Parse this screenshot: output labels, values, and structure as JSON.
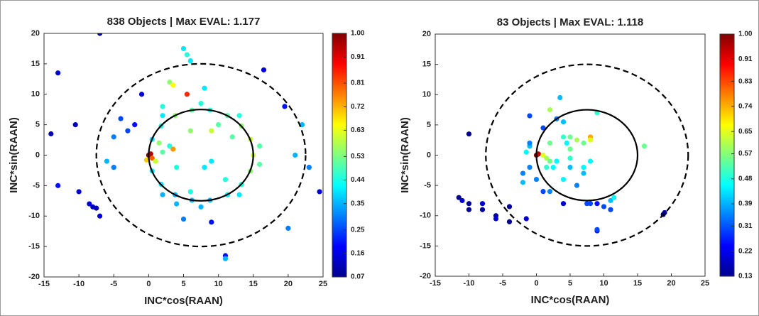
{
  "chart_data": [
    {
      "type": "scatter",
      "title": "838 Objects | Max EVAL: 1.177",
      "x_label": "INC*cos(RAAN)",
      "y_label": "INC*sin(RAAN)",
      "xlim": [
        -15,
        25
      ],
      "ylim": [
        -20,
        20
      ],
      "xticks": [
        -15,
        -10,
        -5,
        0,
        5,
        10,
        15,
        20,
        25
      ],
      "yticks": [
        -20,
        -15,
        -10,
        -5,
        0,
        5,
        10,
        15,
        20
      ],
      "colormap": "jet",
      "clim": [
        0.07,
        1
      ],
      "cticks": [
        0.07,
        0.16,
        0.25,
        0.35,
        0.44,
        0.53,
        0.63,
        0.72,
        0.81,
        0.91,
        {
          "value": 1,
          "label": "1.00"
        }
      ],
      "circles": [
        {
          "cx": 7.5,
          "cy": 0,
          "r": 15,
          "style": "dashed"
        },
        {
          "cx": 7.5,
          "cy": 0,
          "r": 7.5,
          "style": "solid"
        }
      ],
      "x": [
        -7,
        -13,
        -14,
        -10.5,
        -13,
        -10,
        -8.5,
        -8,
        -7.5,
        -7,
        16.5,
        19.5,
        24.5,
        23,
        22,
        20,
        11,
        11,
        9,
        5,
        -5,
        -6,
        -5,
        -3,
        -2,
        -4,
        21,
        5,
        5.5,
        6,
        5.5,
        3,
        3.5,
        8,
        2,
        -1,
        0,
        0.3,
        0.5,
        1,
        -0.3,
        2,
        1.5,
        3.5,
        4,
        6,
        9,
        10,
        12,
        8,
        11,
        6,
        4,
        3,
        9,
        15,
        14.6,
        13.3,
        11.3,
        8.8,
        6.2,
        3.8,
        1.8,
        0.5,
        0.5,
        1.8,
        3.8,
        6.2,
        8.8,
        11.3,
        13.3,
        14.6,
        15.9,
        13,
        7.5,
        2,
        2,
        7.5,
        13,
        15.9
      ],
      "y": [
        20,
        13.5,
        3.5,
        5,
        -5,
        -6,
        -8,
        -8.5,
        -8.7,
        -10,
        14,
        8,
        -6,
        -2,
        5,
        -12,
        -16.5,
        -17,
        -11,
        -10.5,
        -2,
        -1,
        3,
        4,
        5,
        6,
        0,
        17.5,
        16.5,
        15.5,
        10,
        12,
        11.5,
        11,
        8,
        10,
        0,
        0.2,
        -0.5,
        -1,
        -0.8,
        0.5,
        2,
        1,
        -2,
        4,
        4,
        5,
        3,
        -2,
        -4,
        -6,
        -8,
        1.5,
        -1,
        0,
        2.6,
        4.8,
        6.5,
        7.4,
        7.4,
        6.5,
        4.8,
        2.6,
        -2.6,
        -4.8,
        -6.5,
        -7.4,
        -7.4,
        -6.5,
        -4.8,
        -2.6,
        1.5,
        6.5,
        8.5,
        6.5,
        -6.5,
        -8.5,
        -6.5,
        -1.5
      ],
      "c": [
        0.1,
        0.15,
        0.12,
        0.13,
        0.2,
        0.15,
        0.15,
        0.13,
        0.12,
        0.15,
        0.15,
        0.2,
        0.15,
        0.3,
        0.35,
        0.3,
        0.2,
        0.35,
        0.2,
        0.3,
        0.3,
        0.35,
        0.3,
        0.25,
        0.2,
        0.25,
        0.35,
        0.4,
        0.45,
        0.4,
        0.85,
        0.55,
        0.65,
        0.4,
        0.45,
        0.15,
        1,
        0.95,
        0.8,
        0.6,
        0.7,
        0.5,
        0.55,
        0.75,
        0.45,
        0.55,
        0.6,
        0.5,
        0.5,
        0.4,
        0.45,
        0.45,
        0.35,
        0.45,
        0.4,
        0.6,
        0.6,
        0.55,
        0.5,
        0.45,
        0.5,
        0.55,
        0.45,
        0.4,
        0.4,
        0.4,
        0.35,
        0.35,
        0.35,
        0.4,
        0.45,
        0.55,
        0.5,
        0.45,
        0.45,
        0.4,
        0.35,
        0.35,
        0.4,
        0.5
      ]
    },
    {
      "type": "scatter",
      "title": "83 Objects | Max EVAL: 1.118",
      "x_label": "INC*cos(RAAN)",
      "y_label": "INC*sin(RAAN)",
      "xlim": [
        -15,
        25
      ],
      "ylim": [
        -20,
        20
      ],
      "xticks": [
        -15,
        -10,
        -5,
        0,
        5,
        10,
        15,
        20,
        25
      ],
      "yticks": [
        -20,
        -15,
        -10,
        -5,
        0,
        5,
        10,
        15,
        20
      ],
      "colormap": "jet",
      "clim": [
        0.13,
        1
      ],
      "cticks": [
        0.13,
        0.22,
        0.31,
        0.39,
        0.48,
        0.57,
        0.65,
        0.74,
        0.83,
        0.91,
        {
          "value": 1,
          "label": "1.00"
        }
      ],
      "circles": [
        {
          "cx": 7.5,
          "cy": 0,
          "r": 15,
          "style": "dashed"
        },
        {
          "cx": 7.5,
          "cy": 0,
          "r": 7.5,
          "style": "solid"
        }
      ],
      "x": [
        -11.5,
        -11,
        -10,
        -10,
        -8,
        -8,
        -6,
        -6,
        -4,
        -4,
        -1.5,
        -10,
        -2,
        -2,
        -1,
        -1.5,
        0,
        0.3,
        1,
        1.5,
        2,
        -1,
        -1,
        -1,
        1,
        2,
        2,
        1.5,
        2.5,
        3,
        3.5,
        3,
        4,
        4,
        4.5,
        5,
        5,
        5,
        6,
        7,
        8,
        8,
        8,
        7,
        7,
        5,
        4,
        2,
        6,
        7.5,
        8,
        9,
        9,
        9,
        10,
        11,
        11,
        11.5,
        9,
        16,
        19,
        18.8,
        4,
        1,
        0
      ],
      "y": [
        -7,
        -7.5,
        -8,
        -9,
        -8,
        -9,
        -10,
        -10.5,
        -8.5,
        -11,
        -10.5,
        3.5,
        -3,
        -4.5,
        -2,
        0.5,
        0,
        0.2,
        0,
        -0.5,
        -1,
        1.5,
        2,
        6.5,
        4.5,
        7.5,
        2,
        -2,
        -2,
        -1,
        9.5,
        6,
        5.5,
        3,
        2,
        3,
        1,
        -0.5,
        2.5,
        2,
        3,
        2.5,
        -1,
        -2,
        -3,
        -2,
        -4,
        -6,
        -5,
        -8,
        -8,
        -8,
        -12.5,
        -12.3,
        -8.5,
        -9,
        -7.5,
        -7,
        7,
        1.5,
        -9.5,
        -9.8,
        -8,
        -6,
        -4
      ],
      "c": [
        0.15,
        0.2,
        0.15,
        0.15,
        0.2,
        0.15,
        0.15,
        0.2,
        0.15,
        0.15,
        0.2,
        0.15,
        0.35,
        0.4,
        0.35,
        0.45,
        1,
        0.95,
        0.65,
        0.6,
        0.55,
        0.4,
        0.35,
        0.3,
        0.3,
        0.6,
        0.55,
        0.5,
        0.45,
        0.45,
        0.4,
        0.35,
        0.4,
        0.5,
        0.45,
        0.55,
        0.55,
        0.5,
        0.6,
        0.55,
        0.75,
        0.65,
        0.45,
        0.45,
        0.4,
        0.4,
        0.45,
        0.35,
        0.35,
        0.3,
        0.3,
        0.25,
        0.25,
        0.3,
        0.3,
        0.3,
        0.4,
        0.45,
        0.5,
        0.55,
        0.15,
        0.13,
        0.2,
        0.3,
        0.35
      ]
    }
  ]
}
